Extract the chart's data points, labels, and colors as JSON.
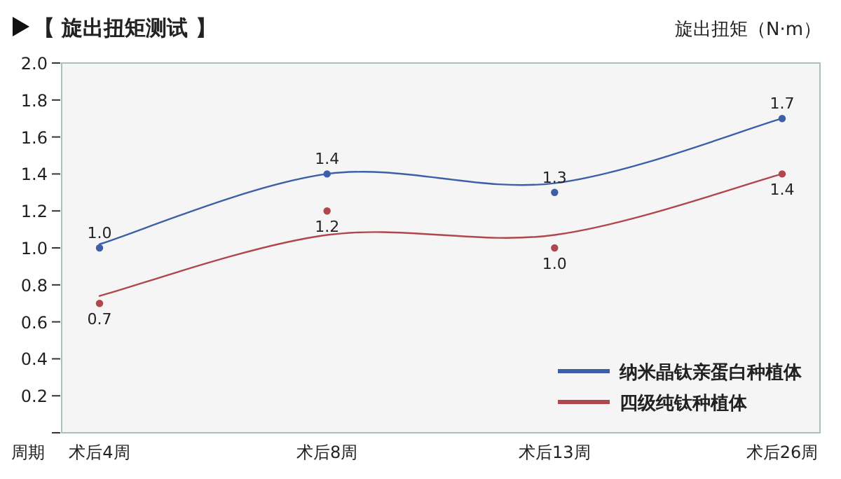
{
  "chart_data": {
    "type": "line",
    "title": "【 旋出扭矩测试 】",
    "ylabel": "旋出扭矩（N·m）",
    "xlabel": "周期",
    "categories": [
      "术后4周",
      "术后8周",
      "术后13周",
      "术后26周"
    ],
    "ylim": [
      0,
      2
    ],
    "yticks": [
      {
        "value": 0,
        "label": null
      },
      {
        "value": 0.2,
        "label": "0.2"
      },
      {
        "value": 0.4,
        "label": "0.4"
      },
      {
        "value": 0.6,
        "label": "0.6"
      },
      {
        "value": 0.8,
        "label": "0.8"
      },
      {
        "value": 1,
        "label": "1.0"
      },
      {
        "value": 1.2,
        "label": "1.2"
      },
      {
        "value": 1.4,
        "label": "1.4"
      },
      {
        "value": 1.6,
        "label": "1.6"
      },
      {
        "value": 1.8,
        "label": "1.8"
      },
      {
        "value": 2,
        "label": "2.0"
      }
    ],
    "legend": "bottom right",
    "series": [
      {
        "name": "纳米晶钛亲蛋白种植体",
        "color": "#3d5fa8",
        "values": [
          1.02,
          1.4,
          1.35,
          1.7
        ]
      },
      {
        "name": "四级纯钛种植体",
        "color": "#b0474c",
        "values": [
          0.74,
          1.07,
          1.07,
          1.4
        ]
      },
      {
        "type": "scatter",
        "color": "#3d5fa8",
        "values": [
          1.0,
          1.4,
          1.3,
          1.7
        ],
        "value_labels": [
          "1.0",
          "1.4",
          "1.3",
          "1.7"
        ]
      },
      {
        "type": "scatter",
        "color": "#b0474c",
        "values": [
          0.7,
          1.2,
          1.0,
          1.4
        ],
        "value_labels": [
          "0.7",
          "1.2",
          "1.0",
          "1.4"
        ]
      }
    ]
  }
}
